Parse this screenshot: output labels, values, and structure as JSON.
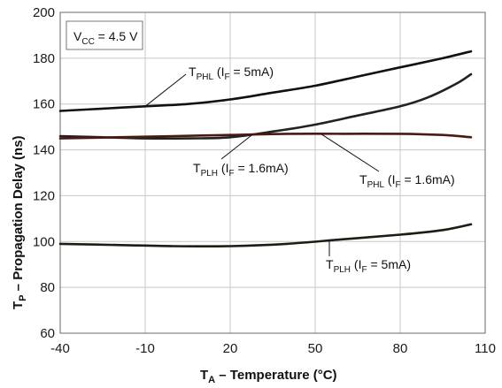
{
  "chart_data": {
    "type": "line",
    "title": "",
    "xlabel": {
      "main": "T",
      "sub": "A",
      "rest": " – Temperature (°C)"
    },
    "ylabel": {
      "main": "T",
      "sub": "P",
      "rest": " – Propagation Delay (ns)"
    },
    "xlim": [
      -40,
      110
    ],
    "ylim": [
      60,
      200
    ],
    "x_ticks": [
      -40,
      -10,
      20,
      50,
      80,
      110
    ],
    "y_ticks": [
      60,
      80,
      100,
      120,
      140,
      160,
      180,
      200
    ],
    "grid": true,
    "condition": {
      "main": "V",
      "sub": "CC",
      "rest": " = 4.5 V"
    },
    "series": [
      {
        "name": "TPHL (IF = 5mA)",
        "label": {
          "main": "T",
          "sub1": "PHL",
          "mid": " (I",
          "sub2": "F",
          "rest": " = 5mA)"
        },
        "color": "#111111",
        "x": [
          -40,
          -25,
          -10,
          5,
          20,
          35,
          50,
          65,
          80,
          95,
          105
        ],
        "y": [
          157,
          158,
          159,
          160,
          162,
          165,
          168,
          172,
          176,
          180,
          183
        ]
      },
      {
        "name": "TPLH (IF = 1.6mA)",
        "label": {
          "main": "T",
          "sub1": "PLH",
          "mid": " (I",
          "sub2": "F",
          "rest": " = 1.6mA)"
        },
        "color": "#222222",
        "x": [
          -40,
          -25,
          -10,
          5,
          20,
          35,
          50,
          65,
          80,
          90,
          100,
          105
        ],
        "y": [
          146,
          145.5,
          145,
          145,
          145.5,
          148,
          151,
          155,
          159,
          163,
          169,
          173
        ]
      },
      {
        "name": "TPHL (IF = 1.6mA)",
        "label": {
          "main": "T",
          "sub1": "PHL",
          "mid": " (I",
          "sub2": "F",
          "rest": " = 1.6mA)"
        },
        "color": "#4a1a12",
        "x": [
          -40,
          -20,
          0,
          20,
          40,
          60,
          80,
          95,
          105
        ],
        "y": [
          145,
          145.5,
          146,
          146.5,
          147,
          147,
          147,
          146.5,
          145.5
        ]
      },
      {
        "name": "TPLH (IF = 5mA)",
        "label": {
          "main": "T",
          "sub1": "PLH",
          "mid": " (I",
          "sub2": "F",
          "rest": " = 5mA)"
        },
        "color": "#1a1f14",
        "x": [
          -40,
          -20,
          0,
          20,
          40,
          60,
          80,
          95,
          105
        ],
        "y": [
          99,
          98.5,
          98,
          98,
          99,
          101,
          103,
          105,
          107.5
        ]
      }
    ]
  }
}
